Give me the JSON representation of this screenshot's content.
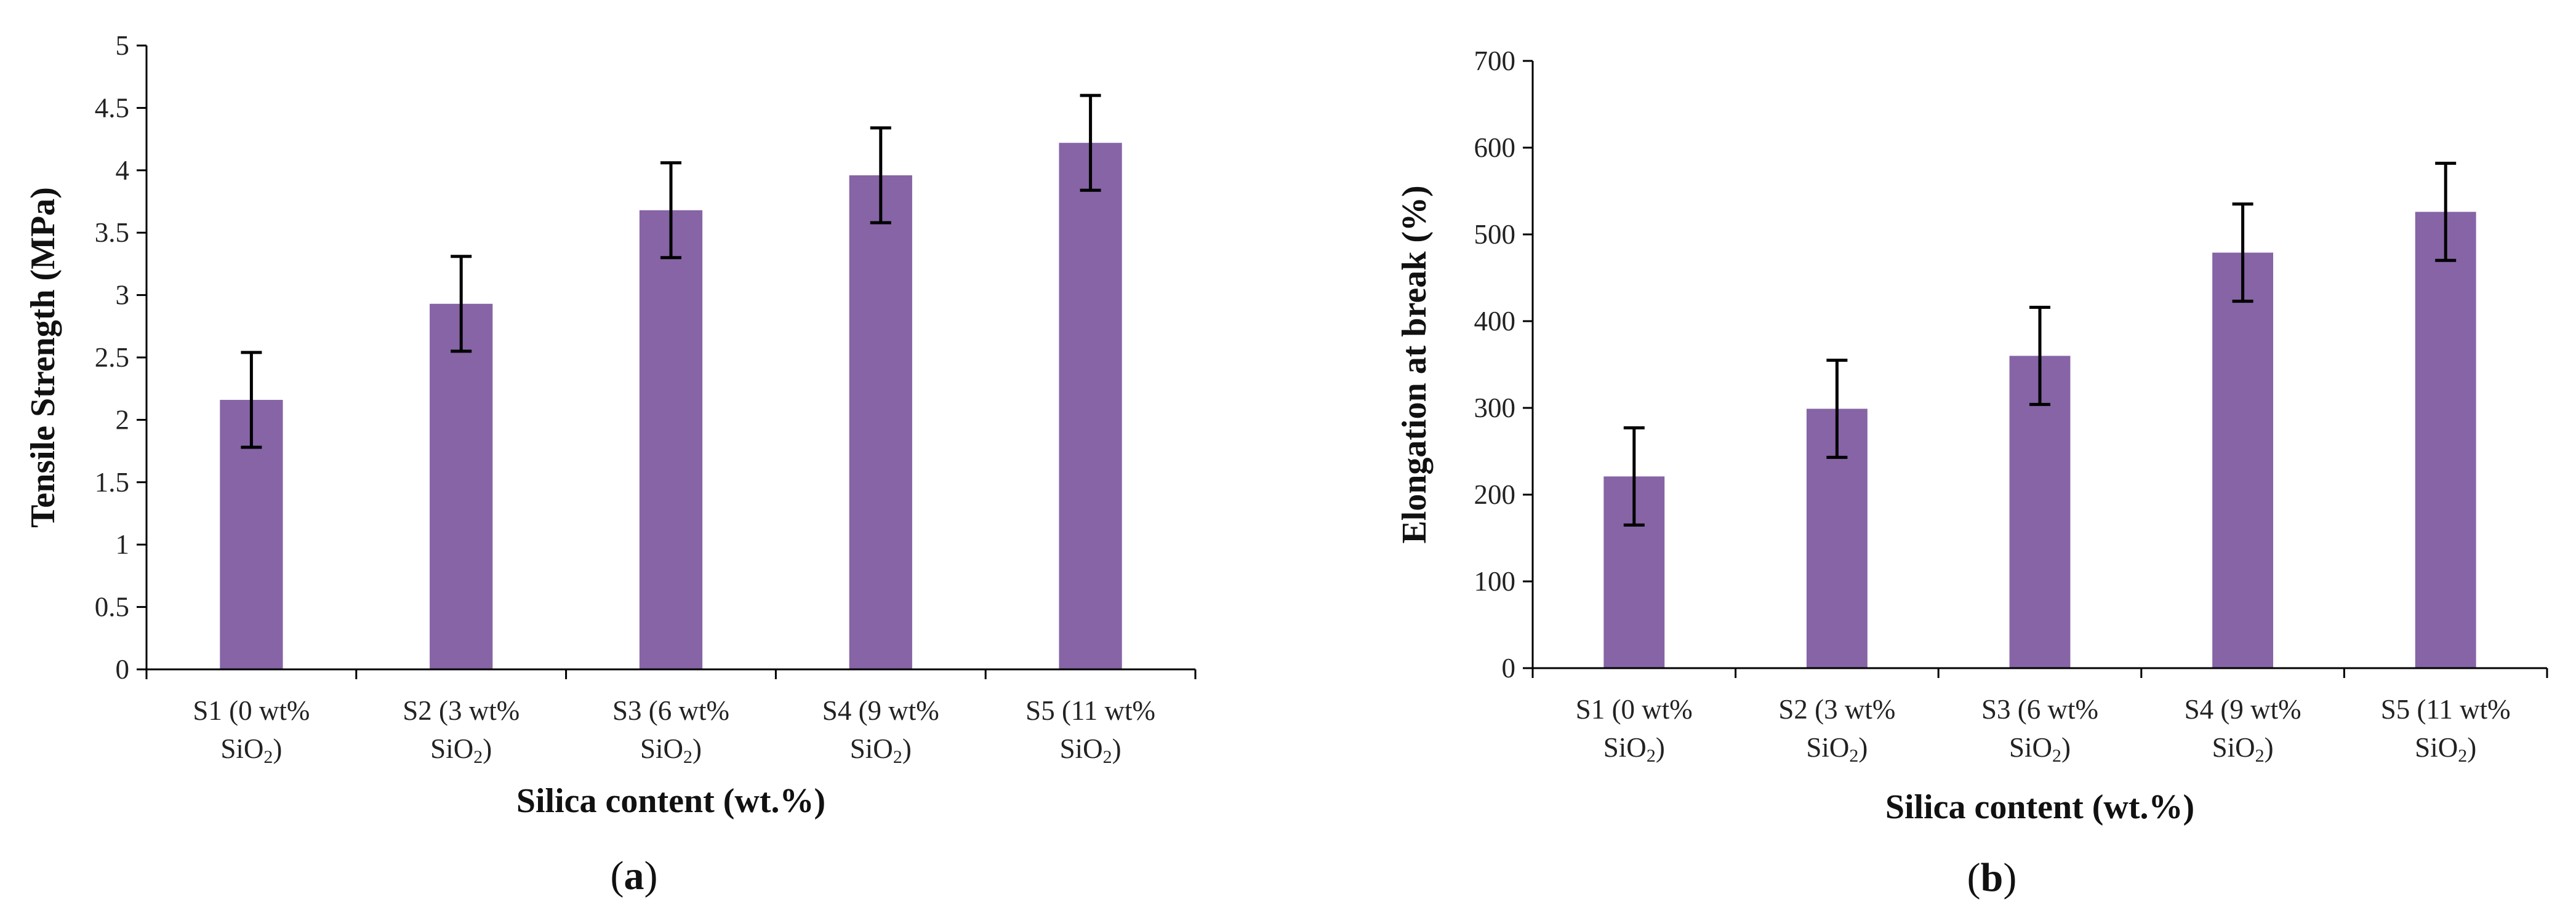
{
  "colors": {
    "bar": "#8664A6",
    "axis": "#000000",
    "text": "#111111"
  },
  "chart_data": [
    {
      "type": "bar",
      "panel": {
        "open": "(",
        "letter": "a",
        "close": ")"
      },
      "ylabel": "Tensile Strength (MPa)",
      "xlabel": "Silica content (wt.%)",
      "ylim": [
        0,
        5
      ],
      "yticks": [
        "0",
        "0.5",
        "1",
        "1.5",
        "2",
        "2.5",
        "3",
        "3.5",
        "4",
        "4.5",
        "5"
      ],
      "categories": [
        {
          "line1": "S1 (0 wt%",
          "sio": "SiO",
          "sub": "2",
          "close": ")"
        },
        {
          "line1": "S2 (3 wt%",
          "sio": "SiO",
          "sub": "2",
          "close": ")"
        },
        {
          "line1": "S3 (6 wt%",
          "sio": "SiO",
          "sub": "2",
          "close": ")"
        },
        {
          "line1": "S4 (9 wt%",
          "sio": "SiO",
          "sub": "2",
          "close": ")"
        },
        {
          "line1": "S5 (11 wt%",
          "sio": "SiO",
          "sub": "2",
          "close": ")"
        }
      ],
      "values": [
        2.16,
        2.93,
        3.68,
        3.96,
        4.22
      ],
      "errors": [
        0.38,
        0.38,
        0.38,
        0.38,
        0.38
      ]
    },
    {
      "type": "bar",
      "panel": {
        "open": "(",
        "letter": "b",
        "close": ")"
      },
      "ylabel": "Elongation at break (%)",
      "xlabel": "Silica content (wt.%)",
      "ylim": [
        0,
        700
      ],
      "yticks": [
        "0",
        "100",
        "200",
        "300",
        "400",
        "500",
        "600",
        "700"
      ],
      "categories": [
        {
          "line1": "S1 (0 wt%",
          "sio": "SiO",
          "sub": "2",
          "close": ")"
        },
        {
          "line1": "S2 (3 wt%",
          "sio": "SiO",
          "sub": "2",
          "close": ")"
        },
        {
          "line1": "S3 (6 wt%",
          "sio": "SiO",
          "sub": "2",
          "close": ")"
        },
        {
          "line1": "S4 (9 wt%",
          "sio": "SiO",
          "sub": "2",
          "close": ")"
        },
        {
          "line1": "S5 (11 wt%",
          "sio": "SiO",
          "sub": "2",
          "close": ")"
        }
      ],
      "values": [
        221,
        299,
        360,
        479,
        526
      ],
      "errors": [
        56,
        56,
        56,
        56,
        56
      ]
    }
  ]
}
